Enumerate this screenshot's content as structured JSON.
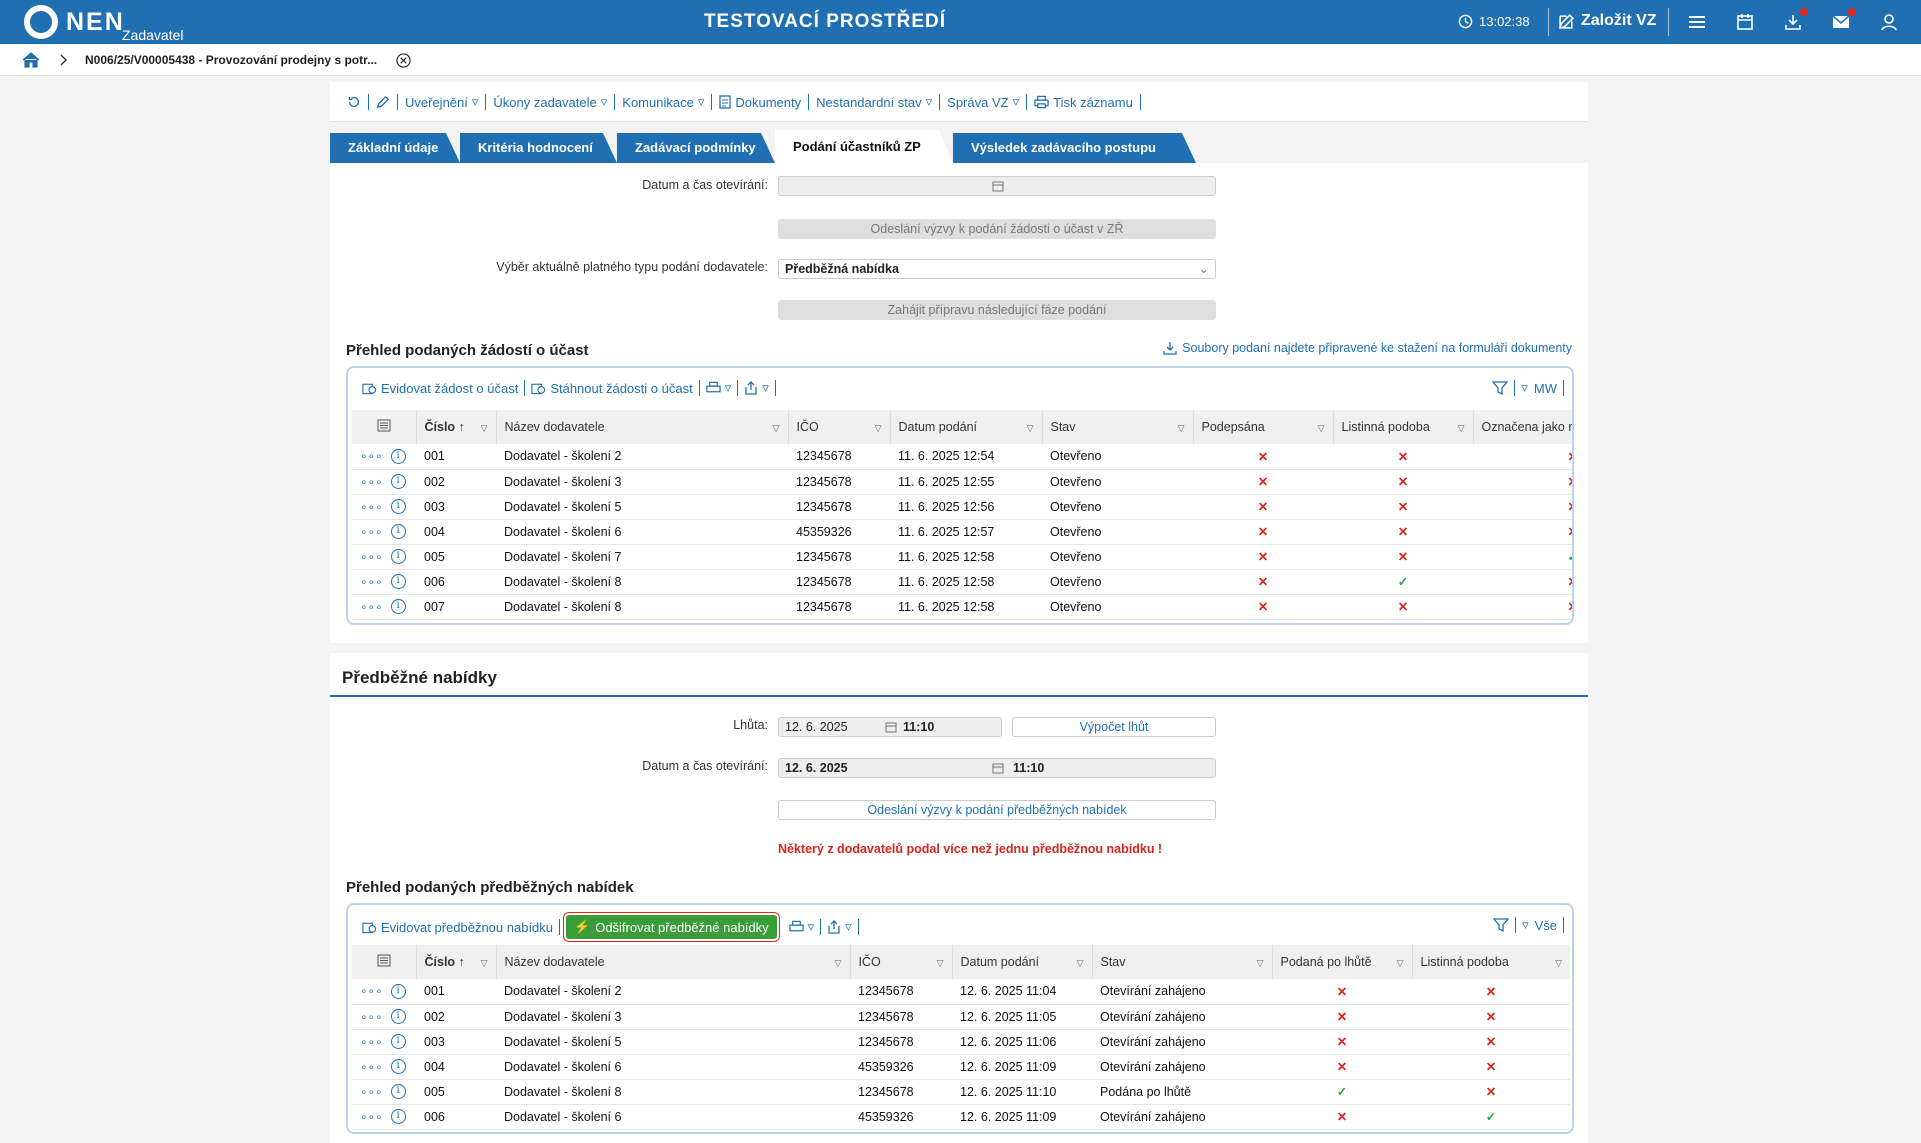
{
  "header": {
    "logo_text": "NEN",
    "logo_sub": "Zadavatel",
    "env_title": "TESTOVACÍ PROSTŘEDÍ",
    "clock": "13:02:38",
    "create_label": "Založit VZ",
    "icons": [
      "clock-icon",
      "edit-icon",
      "menu-icon",
      "calendar-icon",
      "download-icon",
      "mail-icon",
      "user-icon"
    ]
  },
  "breadcrumb": {
    "title": "N006/25/V00005438 - Provozování prodejny s potr..."
  },
  "toolbar": {
    "items": [
      "Uveřejnění",
      "Úkony zadavatele",
      "Komunikace",
      "Dokumenty",
      "Nestandardní stav",
      "Správa VZ",
      "Tisk záznamu"
    ]
  },
  "tabs": [
    "Základní údaje",
    "Kritéria hodnocení",
    "Zadávací podmínky",
    "Podání účastníků ZP",
    "Výsledek zadávacího postupu"
  ],
  "section1": {
    "open_label": "Datum a čas otevírání:",
    "send_btn": "Odeslání výzvy k podání žádosti o účast v ZŘ",
    "type_label": "Výběr aktuálně platného typu podání dodavatele:",
    "type_value": "Předběžná nabídka",
    "prepare_btn": "Zahájit přípravu následující fáze podání",
    "overview_title": "Přehled podaných žádostí o účast",
    "files_link": "Soubory podaní najdete připravené ke stažení na formuláři dokumenty",
    "grid": {
      "evid_btn": "Evidovat žádost o účast",
      "download_btn": "Stáhnout žádosti o účast",
      "filter_label": "MW",
      "columns": [
        "Číslo",
        "Název dodavatele",
        "IČO",
        "Datum podání",
        "Stav",
        "Podepsána",
        "Listinná podoba",
        "Označena jako ne"
      ],
      "rows": [
        {
          "num": "001",
          "name": "Dodavatel - školení 2",
          "ico": "12345678",
          "date": "11. 6. 2025 12:54",
          "state": "Otevřeno",
          "signed": "x",
          "paper": "x",
          "marked": "x"
        },
        {
          "num": "002",
          "name": "Dodavatel - školení 3",
          "ico": "12345678",
          "date": "11. 6. 2025 12:55",
          "state": "Otevřeno",
          "signed": "x",
          "paper": "x",
          "marked": "x"
        },
        {
          "num": "003",
          "name": "Dodavatel - školení 5",
          "ico": "12345678",
          "date": "11. 6. 2025 12:56",
          "state": "Otevřeno",
          "signed": "x",
          "paper": "x",
          "marked": "x"
        },
        {
          "num": "004",
          "name": "Dodavatel - školení 6",
          "ico": "45359326",
          "date": "11. 6. 2025 12:57",
          "state": "Otevřeno",
          "signed": "x",
          "paper": "x",
          "marked": "x"
        },
        {
          "num": "005",
          "name": "Dodavatel - školení 7",
          "ico": "12345678",
          "date": "11. 6. 2025 12:58",
          "state": "Otevřeno",
          "signed": "x",
          "paper": "x",
          "marked": "ok"
        },
        {
          "num": "006",
          "name": "Dodavatel - školení 8",
          "ico": "12345678",
          "date": "11. 6. 2025 12:58",
          "state": "Otevřeno",
          "signed": "x",
          "paper": "ok",
          "marked": "x"
        },
        {
          "num": "007",
          "name": "Dodavatel - školení 8",
          "ico": "12345678",
          "date": "11. 6. 2025 12:58",
          "state": "Otevřeno",
          "signed": "x",
          "paper": "x",
          "marked": "x"
        }
      ]
    }
  },
  "section2": {
    "title": "Předběžné nabídky",
    "deadline_label": "Lhůta:",
    "deadline_date": "12. 6. 2025",
    "deadline_time": "11:10",
    "calc_btn": "Výpočet lhůt",
    "open_label": "Datum a čas otevírání:",
    "open_date": "12. 6. 2025",
    "open_time": "11:10",
    "send_btn": "Odeslání výzvy k podání předběžných nabídek",
    "warning": "Některý z dodavatelů podal více než jednu předběžnou nabídku !",
    "overview_title": "Přehled podaných předběžných nabídek",
    "grid": {
      "evid_btn": "Evidovat předběžnou nabídku",
      "decrypt_btn": "Odšifrovat předběžné nabídky",
      "filter_label": "Vše",
      "columns": [
        "Číslo",
        "Název dodavatele",
        "IČO",
        "Datum podání",
        "Stav",
        "Podaná po lhůtě",
        "Listinná podoba"
      ],
      "rows": [
        {
          "num": "001",
          "name": "Dodavatel - školení 2",
          "ico": "12345678",
          "date": "12. 6. 2025 11:04",
          "state": "Otevírání zahájeno",
          "late": "x",
          "paper": "x"
        },
        {
          "num": "002",
          "name": "Dodavatel - školení 3",
          "ico": "12345678",
          "date": "12. 6. 2025 11:05",
          "state": "Otevírání zahájeno",
          "late": "x",
          "paper": "x"
        },
        {
          "num": "003",
          "name": "Dodavatel - školení 5",
          "ico": "12345678",
          "date": "12. 6. 2025 11:06",
          "state": "Otevírání zahájeno",
          "late": "x",
          "paper": "x"
        },
        {
          "num": "004",
          "name": "Dodavatel - školení 6",
          "ico": "45359326",
          "date": "12. 6. 2025 11:09",
          "state": "Otevírání zahájeno",
          "late": "x",
          "paper": "x"
        },
        {
          "num": "005",
          "name": "Dodavatel - školení 8",
          "ico": "12345678",
          "date": "12. 6. 2025 11:10",
          "state": "Podána po lhůtě",
          "late": "ok",
          "paper": "x"
        },
        {
          "num": "006",
          "name": "Dodavatel - školení 6",
          "ico": "45359326",
          "date": "12. 6. 2025 11:09",
          "state": "Otevírání zahájeno",
          "late": "x",
          "paper": "ok"
        }
      ]
    }
  },
  "colors": {
    "brand": "#1f6fb2",
    "error": "#d6261d",
    "success": "#2aa84a"
  }
}
